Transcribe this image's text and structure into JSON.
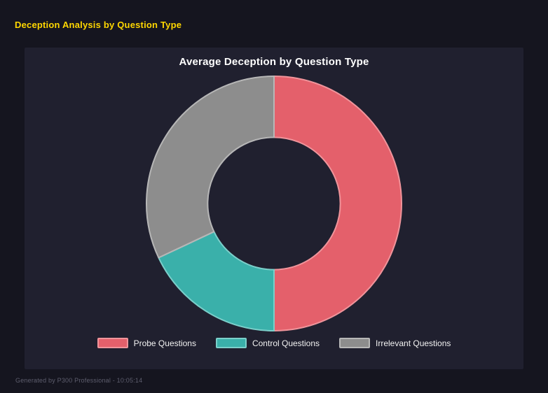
{
  "page": {
    "title": "Deception Analysis by Question Type",
    "footer": "Generated by P300 Professional - 10:05:14"
  },
  "chart_data": {
    "type": "pie",
    "variant": "donut",
    "title": "Average Deception by Question Type",
    "labels": [
      "Probe Questions",
      "Control Questions",
      "Irrelevant Questions"
    ],
    "values": [
      50,
      18,
      32
    ],
    "unit": "percent_of_total",
    "colors": [
      "#e4606b",
      "#3ab0aa",
      "#8d8d8d"
    ],
    "border_colors": [
      "#f0949b",
      "#7bcfca",
      "#b7b7b7"
    ],
    "legend_position": "bottom",
    "cutout_percent": 52,
    "start_angle_deg": 0,
    "grid": false
  },
  "colors": {
    "page_bg": "#15151f",
    "panel_bg": "#20202f",
    "accent_yellow": "#ffd700",
    "chart_title_text": "#ffffff",
    "legend_text": "#f2f2f2",
    "footer_text": "#5e5e6e"
  }
}
